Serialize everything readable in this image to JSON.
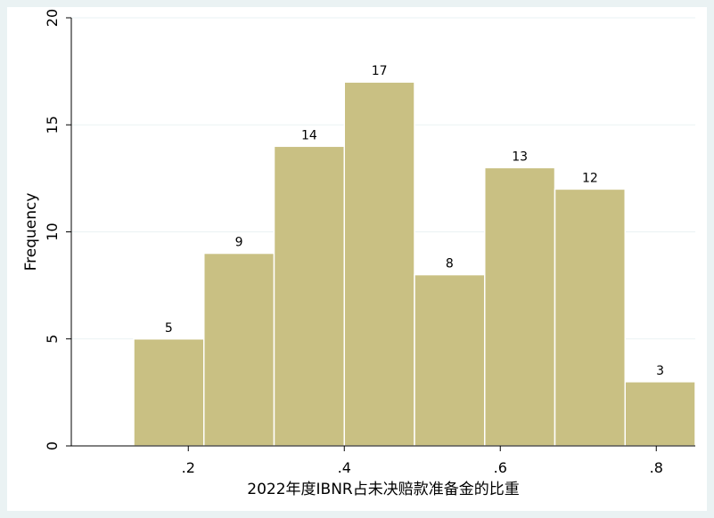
{
  "chart_data": {
    "type": "bar",
    "title": "",
    "xlabel": "2022年度IBNR占未决赔款准备金的比重",
    "ylabel": "Frequency",
    "xlim": [
      0.05,
      0.85
    ],
    "ylim": [
      0,
      20
    ],
    "grid": true,
    "bin_edges": [
      0.13,
      0.22,
      0.31,
      0.4,
      0.49,
      0.58,
      0.67,
      0.76,
      0.85
    ],
    "values": [
      5,
      9,
      14,
      17,
      8,
      13,
      12,
      3
    ],
    "x_ticks": [
      {
        "value": 0.2,
        "label": ".2"
      },
      {
        "value": 0.4,
        "label": ".4"
      },
      {
        "value": 0.6,
        "label": ".6"
      },
      {
        "value": 0.8,
        "label": ".8"
      }
    ],
    "y_ticks": [
      {
        "value": 0,
        "label": "0"
      },
      {
        "value": 5,
        "label": "5"
      },
      {
        "value": 10,
        "label": "10"
      },
      {
        "value": 15,
        "label": "15"
      },
      {
        "value": 20,
        "label": "20"
      }
    ]
  },
  "colors": {
    "bar_fill": "#c9c083",
    "bar_stroke": "#ffffff",
    "grid": "#eaf2f3",
    "axis": "#000000",
    "outer_bg": "#eaf2f3",
    "plot_bg": "#ffffff"
  }
}
